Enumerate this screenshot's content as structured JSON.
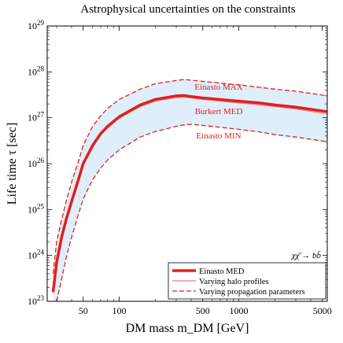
{
  "chart_data": {
    "type": "line",
    "title": "Astrophysical uncertainties on the constraints",
    "xlabel": "DM mass m_DM [GeV]",
    "ylabel": "Life time τ [sec]",
    "xscale": "log",
    "yscale": "log",
    "xlim": [
      25,
      5500
    ],
    "ylim": [
      1e+23,
      1e+29
    ],
    "x_ticks": [
      50,
      100,
      500,
      1000,
      5000
    ],
    "y_ticks": [
      {
        "value": 1e+23,
        "label": "10^23"
      },
      {
        "value": 1e+24,
        "label": "10^24"
      },
      {
        "value": 1e+25,
        "label": "10^25"
      },
      {
        "value": 1e+26,
        "label": "10^26"
      },
      {
        "value": 1e+27,
        "label": "10^27"
      },
      {
        "value": 1e+28,
        "label": "10^28"
      },
      {
        "value": 1e+29,
        "label": "10^29"
      }
    ],
    "grid": false,
    "legend_position": "bottom-right",
    "band_color": "#dfeefb",
    "colors": {
      "main": "#e0201f"
    },
    "process_label": "χχ̄ → bb̄",
    "series": [
      {
        "name": "Einasto MED",
        "style": "thick-solid",
        "x": [
          28,
          30,
          33,
          36,
          40,
          45,
          50,
          60,
          70,
          80,
          100,
          150,
          200,
          300,
          350,
          400,
          500,
          700,
          1000,
          1500,
          2000,
          3000,
          5500
        ],
        "y": [
          1.6e+23,
          7e+23,
          2.5e+24,
          6e+24,
          1.5e+25,
          4e+25,
          1e+26,
          2.5e+26,
          4.5e+26,
          6.5e+26,
          1.05e+27,
          1.9e+27,
          2.5e+27,
          3e+27,
          3.05e+27,
          2.9e+27,
          2.7e+27,
          2.5e+27,
          2.3e+27,
          2.1e+27,
          1.9e+27,
          1.7e+27,
          1.35e+27
        ]
      },
      {
        "name": "Varying halo profiles",
        "style": "thin-solid",
        "x": [
          28,
          30,
          33,
          36,
          40,
          45,
          50,
          60,
          70,
          80,
          100,
          150,
          200,
          300,
          350,
          400,
          500,
          700,
          1000,
          1500,
          2000,
          3000,
          5500
        ],
        "y": [
          1.5e+23,
          6.5e+23,
          2.3e+24,
          5.5e+24,
          1.4e+25,
          3.7e+25,
          9.2e+25,
          2.3e+26,
          4.2e+26,
          6e+26,
          9.8e+26,
          1.75e+27,
          2.3e+27,
          2.75e+27,
          2.8e+27,
          2.7e+27,
          2.5e+27,
          2.3e+27,
          2.1e+27,
          1.9e+27,
          1.75e+27,
          1.55e+27,
          1.2e+27
        ]
      },
      {
        "name": "Varying propagation parameters",
        "style": "dashed",
        "x": [
          28,
          30,
          33,
          36,
          40,
          45,
          50,
          60,
          70,
          80,
          100,
          150,
          200,
          300,
          350,
          400,
          500,
          700,
          1000,
          1500,
          2000,
          3000,
          5500
        ],
        "y": [
          4e+23,
          2e+24,
          6e+24,
          1.5e+25,
          4e+25,
          1e+26,
          2.5e+26,
          6.5e+26,
          1.1e+27,
          1.6e+27,
          2.5e+27,
          4.2e+27,
          5.5e+27,
          6.5e+27,
          6.8e+27,
          6.6e+27,
          6.2e+27,
          5.7e+27,
          5.2e+27,
          4.6e+27,
          4.2e+27,
          3.8e+27,
          3e+27
        ]
      },
      {
        "name": "Einasto MIN",
        "legend": false,
        "style": "dashed",
        "x": [
          30,
          33,
          36,
          40,
          45,
          50,
          60,
          70,
          80,
          100,
          150,
          200,
          300,
          350,
          400,
          500,
          700,
          1000,
          1500,
          2000,
          3000,
          5500
        ],
        "y": [
          1e+23,
          3e+23,
          9e+23,
          2.5e+24,
          7e+24,
          1.7e+25,
          4.5e+25,
          8e+25,
          1.2e+26,
          2e+26,
          3.8e+26,
          5e+26,
          6.5e+26,
          7e+26,
          7.2e+26,
          6.8e+26,
          6.2e+26,
          5.6e+26,
          4.9e+26,
          4.3e+26,
          3.8e+26,
          3e+26
        ]
      }
    ],
    "annotations": [
      "Einasto MAX",
      "Burkert MED",
      "Einasto MIN"
    ]
  }
}
